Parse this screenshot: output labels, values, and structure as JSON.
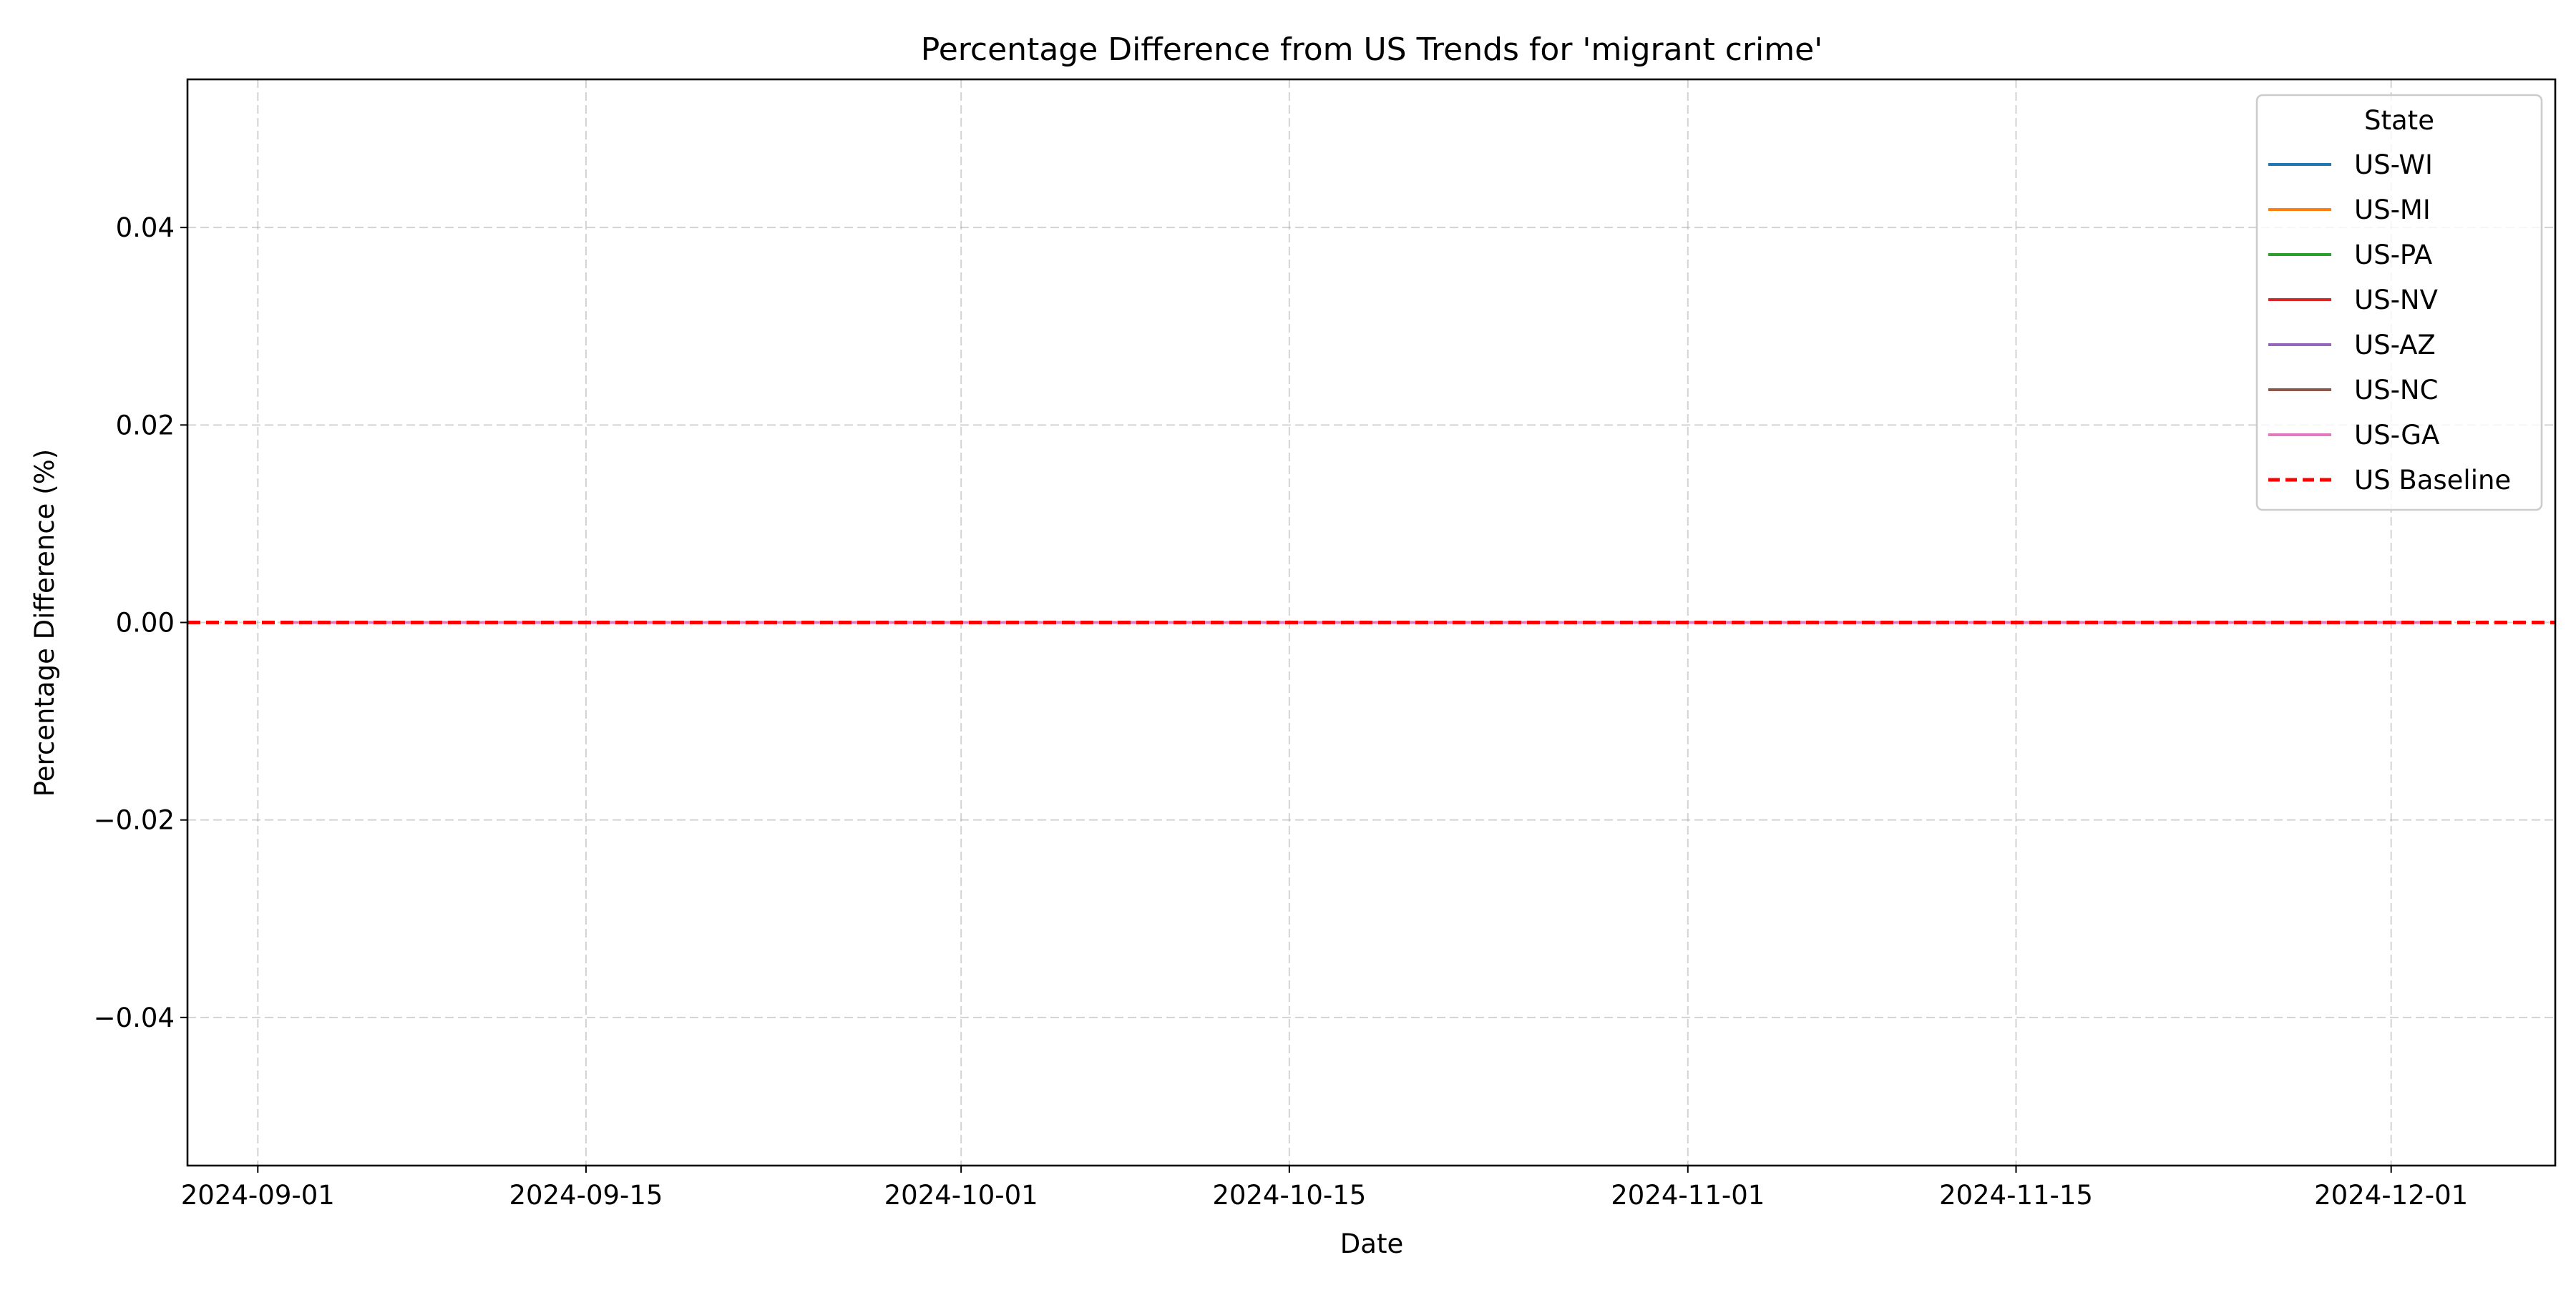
{
  "chart_data": {
    "type": "line",
    "title": "Percentage Difference from US Trends for 'migrant crime'",
    "xlabel": "Date",
    "ylabel": "Percentage Difference (%)",
    "x_ticks": [
      "2024-09-01",
      "2024-09-15",
      "2024-10-01",
      "2024-10-15",
      "2024-11-01",
      "2024-11-15",
      "2024-12-01"
    ],
    "y_ticks": [
      0.04,
      0.02,
      0.0,
      -0.02,
      -0.04
    ],
    "y_tick_labels": [
      "0.04",
      "0.02",
      "0.00",
      "−0.02",
      "−0.04"
    ],
    "xlim": [
      "2024-08-29",
      "2024-12-08"
    ],
    "ylim": [
      -0.055,
      0.055
    ],
    "grid": true,
    "legend": {
      "title": "State",
      "placement": "top-right"
    },
    "series": [
      {
        "name": "US-WI",
        "color": "#1f77b4",
        "style": "solid",
        "x": [
          "2024-09-02",
          "2024-12-03"
        ],
        "y": [
          0,
          0
        ]
      },
      {
        "name": "US-MI",
        "color": "#ff7f0e",
        "style": "solid",
        "x": [
          "2024-09-02",
          "2024-12-03"
        ],
        "y": [
          0,
          0
        ]
      },
      {
        "name": "US-PA",
        "color": "#2ca02c",
        "style": "solid",
        "x": [
          "2024-09-02",
          "2024-12-03"
        ],
        "y": [
          0,
          0
        ]
      },
      {
        "name": "US-NV",
        "color": "#d62728",
        "style": "solid",
        "x": [
          "2024-09-02",
          "2024-12-03"
        ],
        "y": [
          0,
          0
        ]
      },
      {
        "name": "US-AZ",
        "color": "#9467bd",
        "style": "solid",
        "x": [
          "2024-09-02",
          "2024-12-03"
        ],
        "y": [
          0,
          0
        ]
      },
      {
        "name": "US-NC",
        "color": "#8c564b",
        "style": "solid",
        "x": [
          "2024-09-02",
          "2024-12-03"
        ],
        "y": [
          0,
          0
        ]
      },
      {
        "name": "US-GA",
        "color": "#e377c2",
        "style": "solid",
        "x": [
          "2024-09-02",
          "2024-12-03"
        ],
        "y": [
          0,
          0
        ]
      }
    ],
    "baseline": {
      "name": "US Baseline",
      "color": "#ff0000",
      "style": "dashed",
      "y": 0
    }
  }
}
